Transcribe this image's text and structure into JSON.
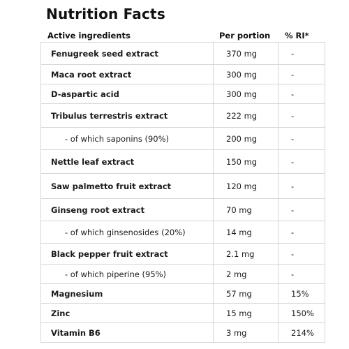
{
  "title": "Nutrition Facts",
  "headers": {
    "ingredient": "Active ingredients",
    "portion": "Per portion",
    "ri": "% RI*"
  },
  "rows": [
    {
      "name": "Fenugreek seed extract",
      "portion": "370 mg",
      "ri": "-"
    },
    {
      "name": "Maca root extract",
      "portion": "300 mg",
      "ri": "-"
    },
    {
      "name": "D-aspartic acid",
      "portion": "300 mg",
      "ri": "-"
    },
    {
      "name": "Tribulus terrestris extract",
      "portion": "222 mg",
      "ri": "-"
    },
    {
      "name": "- of which saponins (90%)",
      "portion": "200 mg",
      "ri": "-"
    },
    {
      "name": "Nettle leaf extract",
      "portion": "150 mg",
      "ri": "-"
    },
    {
      "name": "Saw palmetto fruit extract",
      "portion": "120 mg",
      "ri": "-"
    },
    {
      "name": "Ginseng root extract",
      "portion": "70 mg",
      "ri": "-"
    },
    {
      "name": "- of which ginsenosides (20%)",
      "portion": "14 mg",
      "ri": "-"
    },
    {
      "name": "Black pepper fruit extract",
      "portion": "2.1 mg",
      "ri": "-"
    },
    {
      "name": "- of which piperine (95%)",
      "portion": "2 mg",
      "ri": "-"
    },
    {
      "name": "Magnesium",
      "portion": "57 mg",
      "ri": "15%"
    },
    {
      "name": "Zinc",
      "portion": "15 mg",
      "ri": "150%"
    },
    {
      "name": "Vitamin B6",
      "portion": "3 mg",
      "ri": "214%"
    }
  ]
}
